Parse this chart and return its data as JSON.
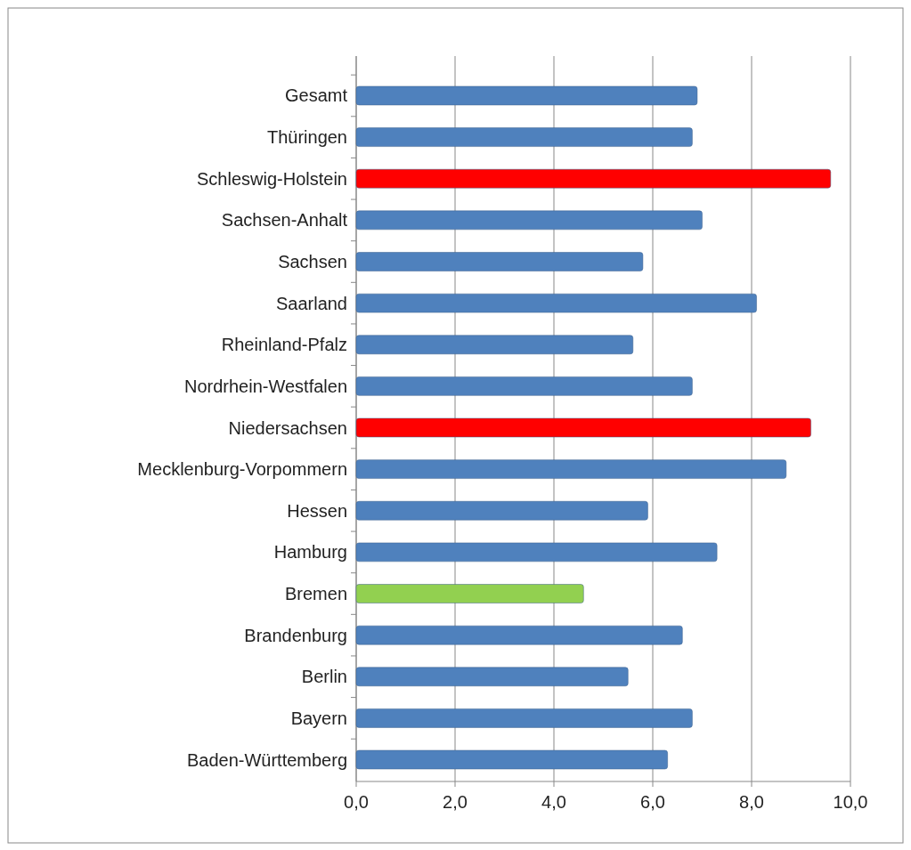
{
  "chart_data": {
    "type": "bar",
    "orientation": "horizontal",
    "categories": [
      "Gesamt",
      "Thüringen",
      "Schleswig-Holstein",
      "Sachsen-Anhalt",
      "Sachsen",
      "Saarland",
      "Rheinland-Pfalz",
      "Nordrhein-Westfalen",
      "Niedersachsen",
      "Mecklenburg-Vorpommern",
      "Hessen",
      "Hamburg",
      "Bremen",
      "Brandenburg",
      "Berlin",
      "Bayern",
      "Baden-Württemberg"
    ],
    "values": [
      6.9,
      6.8,
      9.6,
      7.0,
      5.8,
      8.1,
      5.6,
      6.8,
      9.2,
      8.7,
      5.9,
      7.3,
      4.6,
      6.6,
      5.5,
      6.8,
      6.3
    ],
    "colors": [
      "#4f81bd",
      "#4f81bd",
      "#ff0000",
      "#4f81bd",
      "#4f81bd",
      "#4f81bd",
      "#4f81bd",
      "#4f81bd",
      "#ff0000",
      "#4f81bd",
      "#4f81bd",
      "#4f81bd",
      "#92d050",
      "#4f81bd",
      "#4f81bd",
      "#4f81bd",
      "#4f81bd"
    ],
    "xlim": [
      0,
      10
    ],
    "xticks": [
      {
        "value": 0,
        "label": "0,0"
      },
      {
        "value": 2,
        "label": "2,0"
      },
      {
        "value": 4,
        "label": "4,0"
      },
      {
        "value": 6,
        "label": "6,0"
      },
      {
        "value": 8,
        "label": "8,0"
      },
      {
        "value": 10,
        "label": "10,0"
      }
    ],
    "grid": "x"
  }
}
